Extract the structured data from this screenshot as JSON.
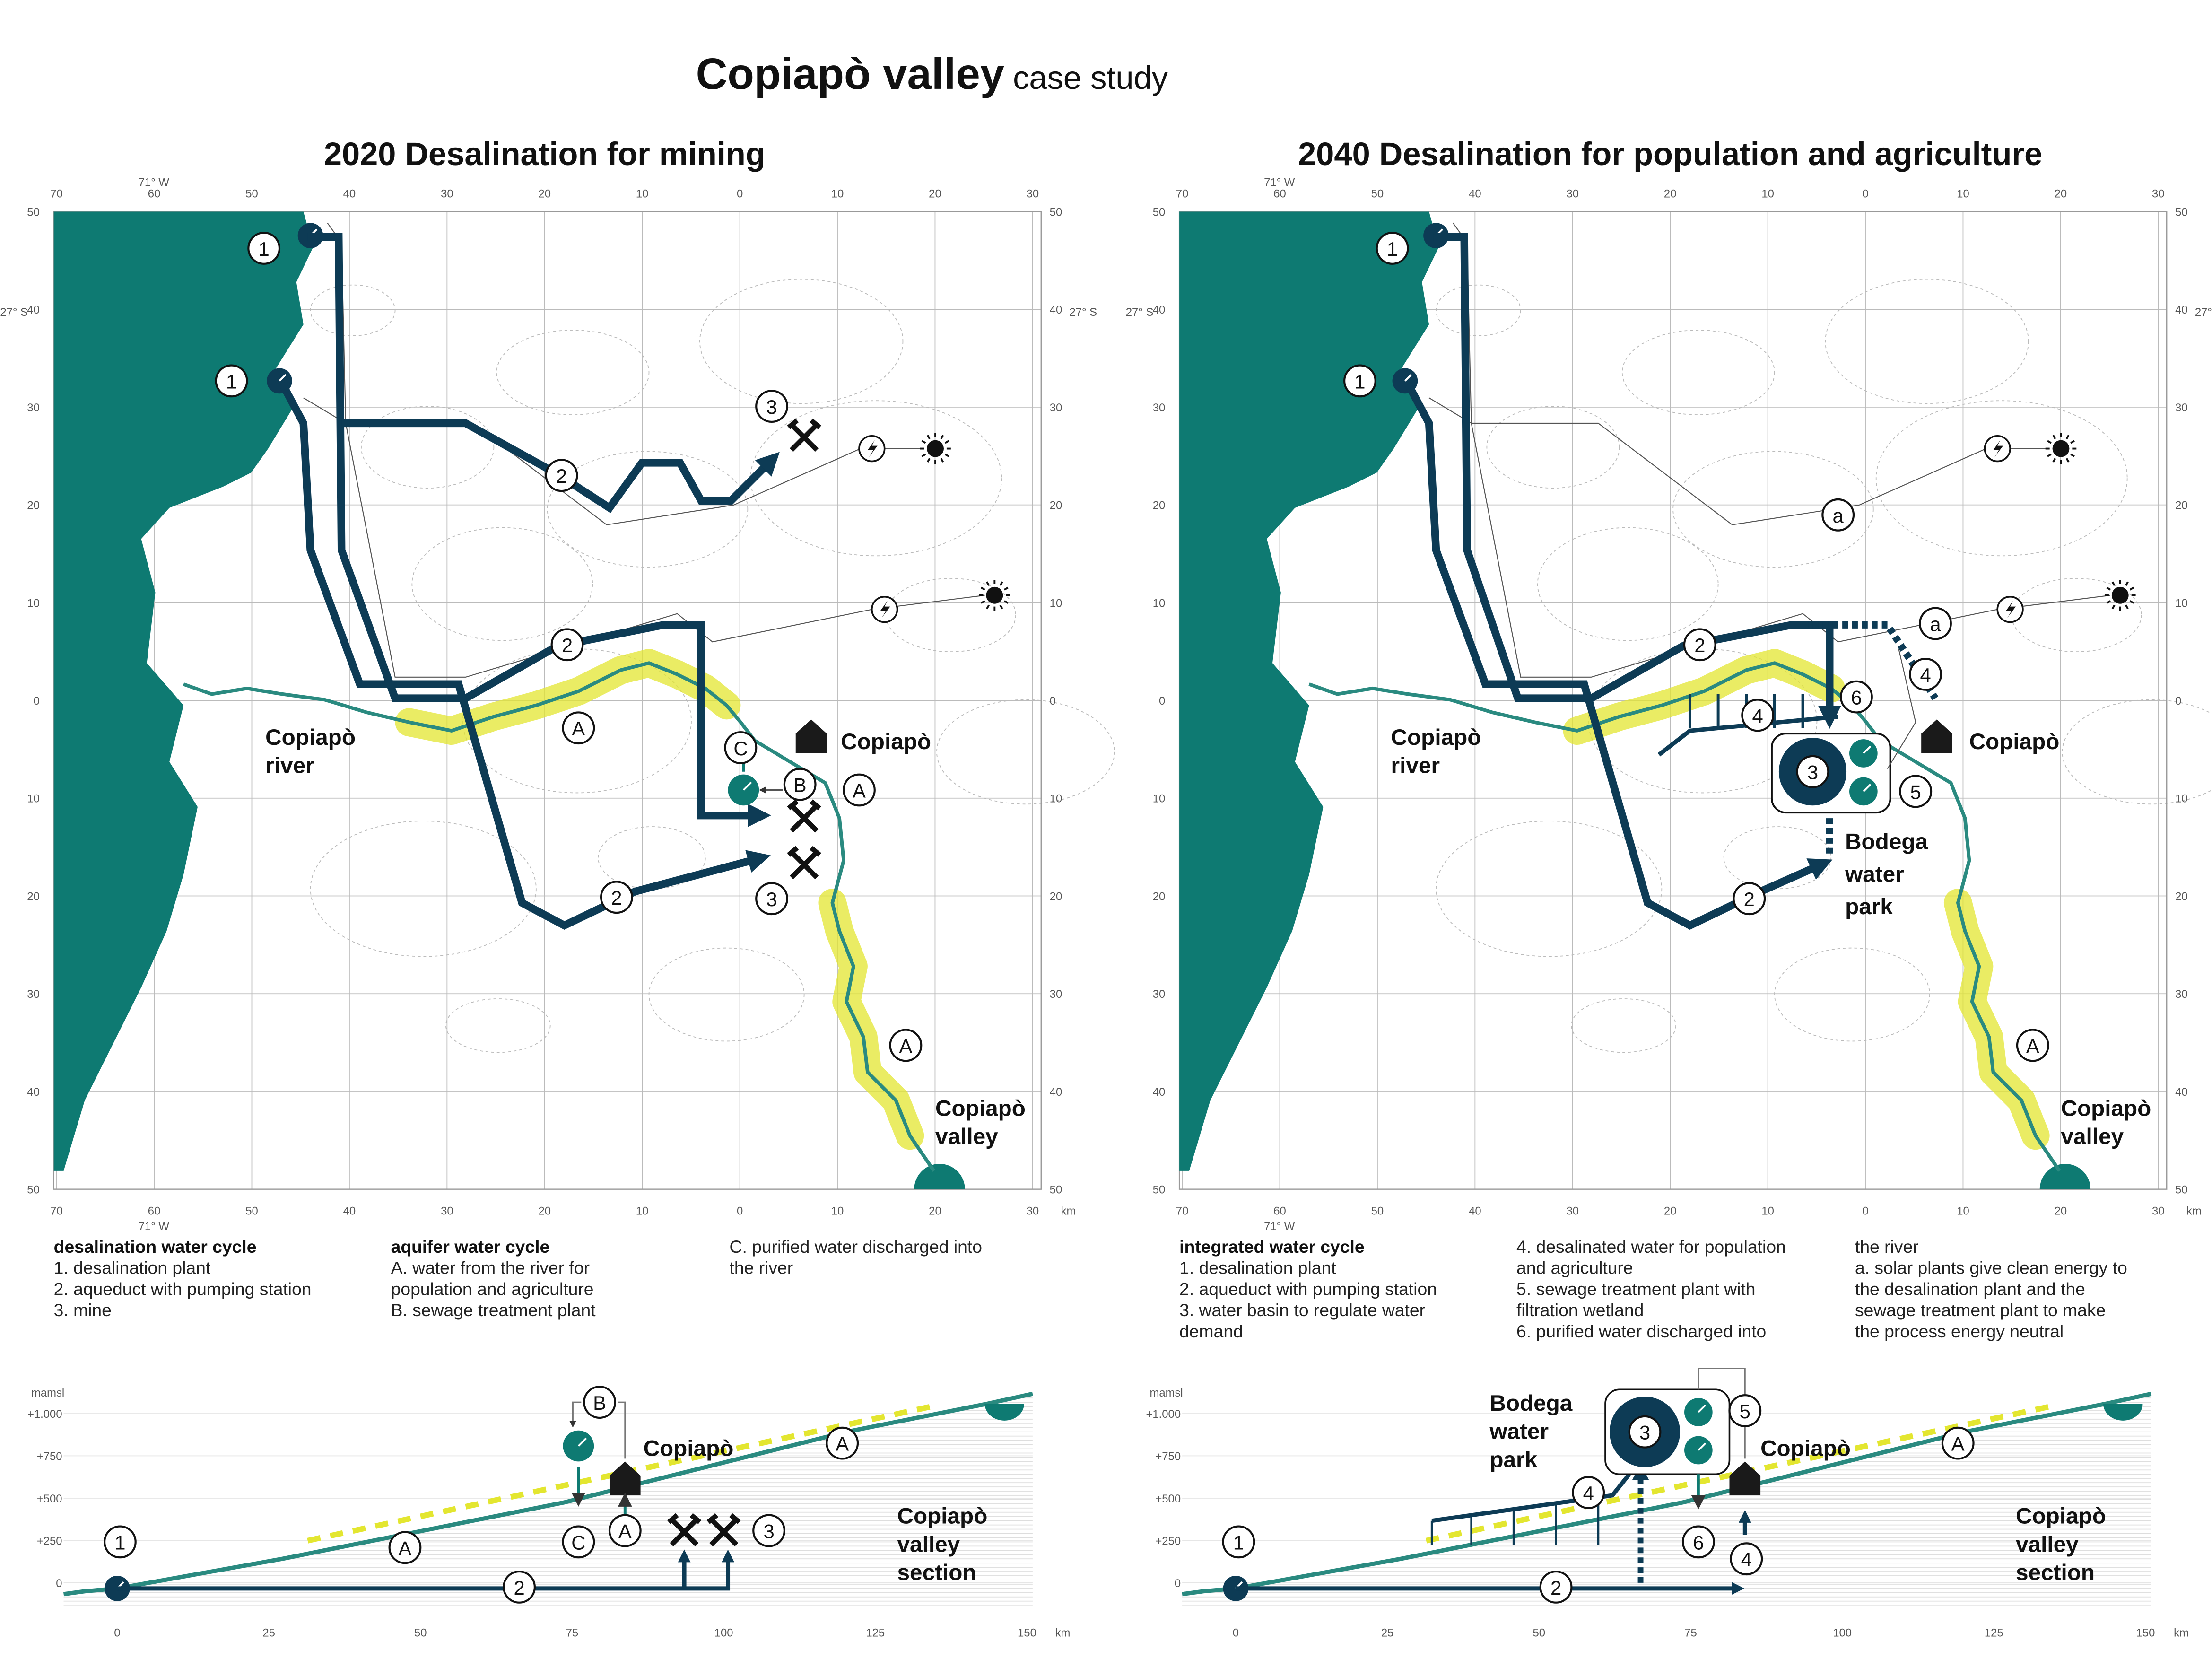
{
  "title": {
    "main": "Copiapò valley",
    "sub": "case study"
  },
  "map_axis": {
    "x_labels": [
      "70",
      "60",
      "50",
      "40",
      "30",
      "20",
      "10",
      "0",
      "10",
      "20",
      "30"
    ],
    "y_labels": [
      "50",
      "40",
      "30",
      "20",
      "10",
      "0",
      "10",
      "20",
      "30",
      "40",
      "50"
    ],
    "lon": "71° W",
    "lat": "27° S",
    "unit": "km"
  },
  "section_axis": {
    "x_labels": [
      "0",
      "25",
      "50",
      "75",
      "100",
      "125",
      "150"
    ],
    "unit": "km",
    "y_unit": "mamsl",
    "y_labels": [
      "+1.000",
      "+750",
      "+500",
      "+250",
      "0"
    ]
  },
  "panels": [
    {
      "title": "2020 Desalination for mining",
      "places": [
        {
          "lines": [
            "Copiapò",
            "river"
          ]
        },
        {
          "lines": [
            "Copiapò"
          ]
        },
        {
          "lines": [
            "Copiapò",
            "valley"
          ]
        }
      ],
      "markers": [
        "1",
        "1",
        "3",
        "2",
        "2",
        "A",
        "C",
        "B",
        "A",
        "3",
        "2",
        "A"
      ],
      "legend": [
        {
          "heading": "desalination water cycle",
          "lines": [
            "1. desalination plant",
            "2. aqueduct with pumping station",
            "3. mine"
          ]
        },
        {
          "heading": "aquifer water cycle",
          "lines": [
            "A. water from the river for",
            "population and agriculture",
            "B. sewage treatment plant"
          ]
        },
        {
          "lines": [
            "C. purified water discharged into",
            "the river"
          ]
        }
      ],
      "section": {
        "markers": [
          "1",
          "2",
          "A",
          "C",
          "A",
          "3",
          "B",
          "A"
        ],
        "places": [
          {
            "lines": [
              "Copiapò"
            ]
          },
          {
            "lines": [
              "Copiapò",
              "valley",
              "section"
            ]
          }
        ]
      }
    },
    {
      "title": "2040 Desalination for population and agriculture",
      "places": [
        {
          "lines": [
            "Copiapò",
            "river"
          ]
        },
        {
          "lines": [
            "Copiapò"
          ]
        },
        {
          "lines": [
            "Copiapò",
            "valley"
          ]
        },
        {
          "lines": [
            "Bodega",
            "water",
            "park"
          ]
        }
      ],
      "markers": [
        "1",
        "1",
        "a",
        "a",
        "2",
        "4",
        "6",
        "4",
        "3",
        "5",
        "2",
        "A"
      ],
      "legend": [
        {
          "heading": "integrated water cycle",
          "lines": [
            "1. desalination plant",
            "2. aqueduct with pumping station",
            "3. water basin to regulate water",
            "demand"
          ]
        },
        {
          "lines": [
            "4. desalinated water for population",
            "and agriculture",
            "5. sewage treatment plant with",
            "filtration wetland",
            "6. purified water discharged into"
          ]
        },
        {
          "lines": [
            "the river",
            "a. solar plants give clean energy to",
            "the desalination plant and the",
            "sewage treatment plant to make",
            "the process energy neutral"
          ]
        }
      ],
      "section": {
        "markers": [
          "1",
          "2",
          "4",
          "3",
          "5",
          "6",
          "4",
          "A"
        ],
        "places": [
          {
            "lines": [
              "Bodega",
              "water",
              "park"
            ]
          },
          {
            "lines": [
              "Copiapò"
            ]
          },
          {
            "lines": [
              "Copiapò",
              "valley",
              "section"
            ]
          }
        ]
      }
    }
  ]
}
